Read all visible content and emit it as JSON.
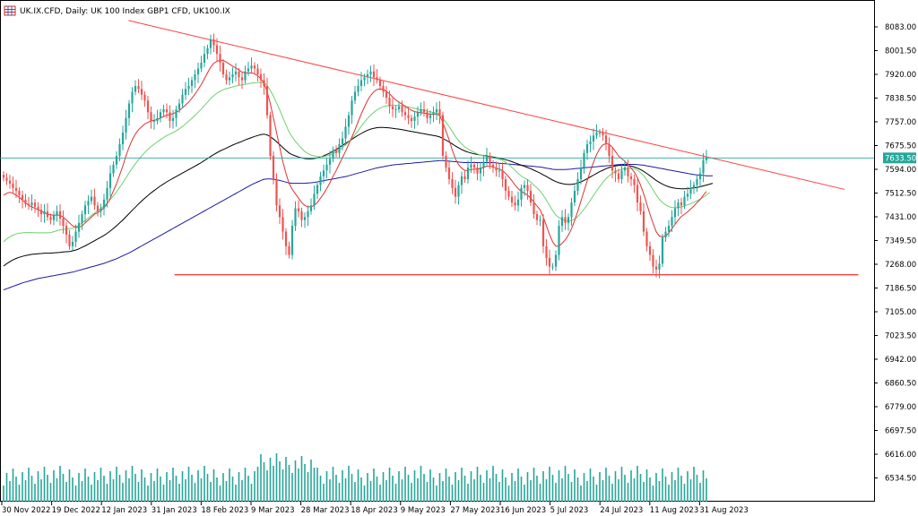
{
  "window": {
    "title": "UK.IX.CFD, Daily:  UK 100 Index GBP1 CFD, UK100.IX",
    "icon": "chart-grid-icon"
  },
  "chart_data": {
    "type": "candlestick",
    "symbol": "UK.IX.CFD",
    "timeframe": "Daily",
    "description": "UK 100 Index GBP1 CFD, UK100.IX",
    "current_price_label": "7633.50",
    "y_ticks": [
      "8083.00",
      "8001.50",
      "7920.00",
      "7838.50",
      "7757.00",
      "7675.50",
      "7594.00",
      "7512.50",
      "7431.00",
      "7349.50",
      "7268.00",
      "7186.50",
      "7105.00",
      "7023.50",
      "6942.00",
      "6860.50",
      "6779.00",
      "6697.50",
      "6616.00",
      "6534.50"
    ],
    "x_ticks": [
      "30 Nov 2022",
      "19 Dec 2022",
      "12 Jan 2023",
      "31 Jan 2023",
      "18 Feb 2023",
      "9 Mar 2023",
      "28 Mar 2023",
      "18 Apr 2023",
      "9 May 2023",
      "27 May 2023",
      "16 Jun 2023",
      "5 Jul 2023",
      "24 Jul 2023",
      "11 Aug 2023",
      "31 Aug 2023"
    ],
    "ylim": [
      6505,
      8105
    ],
    "grid": false,
    "colors": {
      "bull": "#26a69a",
      "bear": "#ef5350",
      "ma_fast": "#e03030",
      "ma_mid": "#6fd06f",
      "ma_slow": "#000000",
      "ma_long": "#1a1aa8",
      "trendline": "#ff4040",
      "support": "#ff4040",
      "price_line": "#26a69a",
      "volume": "#26a69a"
    },
    "closes": [
      7565,
      7555,
      7545,
      7530,
      7520,
      7505,
      7490,
      7475,
      7470,
      7480,
      7465,
      7455,
      7440,
      7450,
      7430,
      7420,
      7435,
      7450,
      7425,
      7400,
      7370,
      7330,
      7345,
      7380,
      7410,
      7440,
      7470,
      7485,
      7500,
      7470,
      7450,
      7460,
      7490,
      7530,
      7580,
      7610,
      7640,
      7680,
      7720,
      7770,
      7820,
      7860,
      7880,
      7870,
      7850,
      7830,
      7790,
      7760,
      7760,
      7770,
      7790,
      7800,
      7790,
      7760,
      7770,
      7800,
      7820,
      7850,
      7870,
      7880,
      7900,
      7920,
      7940,
      7960,
      7990,
      8010,
      8040,
      8020,
      7990,
      7960,
      7920,
      7900,
      7910,
      7920,
      7930,
      7910,
      7900,
      7930,
      7940,
      7950,
      7940,
      7920,
      7900,
      7880,
      7780,
      7640,
      7560,
      7470,
      7430,
      7380,
      7330,
      7300,
      7400,
      7460,
      7450,
      7420,
      7430,
      7450,
      7470,
      7510,
      7540,
      7570,
      7590,
      7610,
      7630,
      7660,
      7650,
      7680,
      7700,
      7740,
      7780,
      7830,
      7860,
      7880,
      7900,
      7910,
      7920,
      7930,
      7910,
      7900,
      7880,
      7860,
      7840,
      7810,
      7800,
      7800,
      7810,
      7790,
      7780,
      7770,
      7760,
      7775,
      7790,
      7800,
      7790,
      7770,
      7780,
      7790,
      7800,
      7780,
      7640,
      7600,
      7560,
      7530,
      7500,
      7540,
      7570,
      7560,
      7600,
      7610,
      7600,
      7580,
      7600,
      7620,
      7640,
      7610,
      7600,
      7590,
      7590,
      7560,
      7520,
      7500,
      7480,
      7470,
      7490,
      7530,
      7540,
      7520,
      7480,
      7440,
      7420,
      7420,
      7330,
      7290,
      7260,
      7260,
      7300,
      7400,
      7430,
      7410,
      7430,
      7480,
      7520,
      7560,
      7600,
      7650,
      7680,
      7690,
      7710,
      7720,
      7720,
      7710,
      7680,
      7640,
      7590,
      7580,
      7560,
      7590,
      7600,
      7570,
      7560,
      7540,
      7480,
      7450,
      7380,
      7330,
      7300,
      7260,
      7250,
      7270,
      7360,
      7380,
      7400,
      7430,
      7460,
      7480,
      7470,
      7500,
      7510,
      7530,
      7540,
      7560,
      7580,
      7625,
      7633
    ],
    "ma_fast": [
      7505,
      7512,
      7515,
      7512,
      7505,
      7498,
      7488,
      7480,
      7470,
      7465,
      7460,
      7455,
      7450,
      7445,
      7440,
      7438,
      7436,
      7437,
      7436,
      7430,
      7420,
      7410,
      7400,
      7395,
      7395,
      7400,
      7410,
      7420,
      7430,
      7440,
      7445,
      7452,
      7462,
      7475,
      7495,
      7520,
      7545,
      7575,
      7605,
      7640,
      7670,
      7695,
      7715,
      7730,
      7740,
      7750,
      7755,
      7760,
      7762,
      7765,
      7770,
      7775,
      7780,
      7782,
      7785,
      7790,
      7795,
      7805,
      7815,
      7825,
      7838,
      7852,
      7868,
      7885,
      7905,
      7925,
      7945,
      7958,
      7965,
      7968,
      7968,
      7962,
      7955,
      7948,
      7942,
      7935,
      7928,
      7925,
      7925,
      7925,
      7922,
      7915,
      7905,
      7890,
      7860,
      7820,
      7770,
      7720,
      7670,
      7620,
      7580,
      7545,
      7525,
      7510,
      7495,
      7480,
      7470,
      7465,
      7465,
      7470,
      7480,
      7495,
      7510,
      7528,
      7548,
      7570,
      7590,
      7612,
      7634,
      7656,
      7680,
      7705,
      7730,
      7758,
      7784,
      7808,
      7830,
      7848,
      7860,
      7868,
      7870,
      7868,
      7862,
      7853,
      7842,
      7832,
      7825,
      7818,
      7810,
      7803,
      7797,
      7792,
      7790,
      7788,
      7787,
      7785,
      7783,
      7783,
      7784,
      7778,
      7755,
      7725,
      7695,
      7660,
      7630,
      7610,
      7598,
      7590,
      7590,
      7593,
      7595,
      7595,
      7597,
      7600,
      7605,
      7605,
      7602,
      7598,
      7595,
      7590,
      7580,
      7568,
      7555,
      7540,
      7528,
      7518,
      7512,
      7505,
      7495,
      7482,
      7468,
      7455,
      7430,
      7400,
      7370,
      7345,
      7330,
      7330,
      7340,
      7352,
      7368,
      7390,
      7418,
      7450,
      7485,
      7520,
      7555,
      7588,
      7618,
      7645,
      7665,
      7678,
      7682,
      7680,
      7670,
      7655,
      7640,
      7630,
      7622,
      7610,
      7598,
      7585,
      7565,
      7540,
      7510,
      7475,
      7440,
      7408,
      7380,
      7365,
      7362,
      7365,
      7375,
      7390,
      7405,
      7420,
      7432,
      7440,
      7448,
      7458,
      7468,
      7480,
      7490,
      7505,
      7518
    ],
    "ma_mid": [
      7345,
      7355,
      7362,
      7368,
      7372,
      7375,
      7376,
      7377,
      7377,
      7377,
      7376,
      7376,
      7376,
      7376,
      7376,
      7377,
      7380,
      7383,
      7386,
      7388,
      7389,
      7390,
      7392,
      7396,
      7402,
      7410,
      7418,
      7427,
      7436,
      7444,
      7452,
      7460,
      7468,
      7478,
      7490,
      7503,
      7517,
      7532,
      7548,
      7565,
      7582,
      7598,
      7613,
      7627,
      7640,
      7652,
      7662,
      7672,
      7680,
      7688,
      7696,
      7703,
      7710,
      7715,
      7720,
      7726,
      7733,
      7741,
      7750,
      7759,
      7769,
      7779,
      7790,
      7801,
      7813,
      7825,
      7837,
      7847,
      7855,
      7862,
      7867,
      7871,
      7874,
      7877,
      7880,
      7882,
      7884,
      7886,
      7888,
      7890,
      7891,
      7892,
      7892,
      7891,
      7882,
      7865,
      7845,
      7822,
      7798,
      7772,
      7747,
      7722,
      7705,
      7690,
      7678,
      7666,
      7655,
      7648,
      7643,
      7640,
      7638,
      7637,
      7638,
      7640,
      7643,
      7648,
      7654,
      7661,
      7669,
      7678,
      7688,
      7700,
      7713,
      7727,
      7742,
      7756,
      7769,
      7780,
      7790,
      7798,
      7804,
      7809,
      7812,
      7813,
      7814,
      7814,
      7814,
      7812,
      7810,
      7808,
      7806,
      7803,
      7801,
      7799,
      7797,
      7794,
      7791,
      7789,
      7787,
      7783,
      7770,
      7755,
      7740,
      7724,
      7707,
      7693,
      7681,
      7671,
      7664,
      7658,
      7652,
      7647,
      7643,
      7640,
      7638,
      7636,
      7634,
      7631,
      7628,
      7624,
      7618,
      7610,
      7601,
      7590,
      7580,
      7571,
      7564,
      7558,
      7550,
      7540,
      7530,
      7520,
      7505,
      7488,
      7470,
      7452,
      7437,
      7428,
      7422,
      7418,
      7416,
      7418,
      7423,
      7432,
      7443,
      7457,
      7472,
      7488,
      7504,
      7520,
      7535,
      7549,
      7562,
      7572,
      7580,
      7587,
      7591,
      7594,
      7597,
      7598,
      7598,
      7596,
      7591,
      7583,
      7572,
      7558,
      7541,
      7523,
      7506,
      7491,
      7480,
      7472,
      7466,
      7463,
      7462,
      7463,
      7465,
      7468,
      7472,
      7476,
      7481,
      7486,
      7492,
      7498,
      7506,
      7515
    ],
    "ma_slow": [
      7262,
      7270,
      7277,
      7283,
      7288,
      7292,
      7295,
      7298,
      7300,
      7302,
      7303,
      7304,
      7305,
      7306,
      7306,
      7306,
      7307,
      7308,
      7309,
      7310,
      7311,
      7312,
      7314,
      7317,
      7321,
      7326,
      7331,
      7337,
      7343,
      7349,
      7355,
      7361,
      7367,
      7374,
      7382,
      7391,
      7400,
      7410,
      7420,
      7431,
      7442,
      7453,
      7464,
      7475,
      7485,
      7495,
      7504,
      7513,
      7521,
      7529,
      7537,
      7544,
      7551,
      7557,
      7563,
      7569,
      7575,
      7581,
      7587,
      7593,
      7599,
      7605,
      7611,
      7617,
      7624,
      7631,
      7638,
      7645,
      7651,
      7657,
      7662,
      7667,
      7672,
      7677,
      7682,
      7686,
      7690,
      7695,
      7699,
      7703,
      7707,
      7710,
      7713,
      7715,
      7712,
      7706,
      7698,
      7689,
      7679,
      7669,
      7659,
      7650,
      7644,
      7640,
      7636,
      7633,
      7631,
      7630,
      7630,
      7631,
      7633,
      7636,
      7640,
      7645,
      7650,
      7656,
      7662,
      7669,
      7676,
      7683,
      7690,
      7697,
      7704,
      7711,
      7717,
      7723,
      7728,
      7732,
      7735,
      7737,
      7738,
      7738,
      7737,
      7736,
      7735,
      7733,
      7732,
      7730,
      7728,
      7726,
      7724,
      7722,
      7720,
      7718,
      7716,
      7714,
      7712,
      7710,
      7708,
      7705,
      7700,
      7694,
      7688,
      7681,
      7674,
      7668,
      7662,
      7657,
      7653,
      7650,
      7647,
      7645,
      7643,
      7641,
      7640,
      7638,
      7636,
      7634,
      7632,
      7630,
      7627,
      7624,
      7620,
      7616,
      7612,
      7608,
      7604,
      7600,
      7596,
      7591,
      7586,
      7581,
      7575,
      7569,
      7563,
      7557,
      7552,
      7548,
      7545,
      7543,
      7542,
      7542,
      7544,
      7547,
      7551,
      7556,
      7562,
      7568,
      7574,
      7580,
      7586,
      7591,
      7596,
      7600,
      7603,
      7606,
      7607,
      7608,
      7608,
      7607,
      7605,
      7602,
      7598,
      7593,
      7587,
      7580,
      7572,
      7564,
      7556,
      7549,
      7543,
      7538,
      7534,
      7531,
      7529,
      7528,
      7527,
      7527,
      7528,
      7529,
      7530,
      7532,
      7534,
      7537,
      7540,
      7543,
      7546
    ],
    "ma_long": [
      7180,
      7184,
      7188,
      7192,
      7196,
      7200,
      7204,
      7207,
      7210,
      7213,
      7216,
      7219,
      7221,
      7223,
      7225,
      7227,
      7229,
      7231,
      7233,
      7235,
      7237,
      7239,
      7241,
      7244,
      7247,
      7250,
      7253,
      7256,
      7259,
      7262,
      7265,
      7268,
      7271,
      7275,
      7279,
      7283,
      7287,
      7292,
      7297,
      7302,
      7307,
      7313,
      7319,
      7325,
      7331,
      7337,
      7343,
      7349,
      7355,
      7361,
      7367,
      7373,
      7379,
      7385,
      7391,
      7397,
      7403,
      7409,
      7415,
      7421,
      7427,
      7433,
      7439,
      7445,
      7451,
      7457,
      7463,
      7469,
      7475,
      7481,
      7487,
      7493,
      7499,
      7505,
      7511,
      7517,
      7523,
      7529,
      7535,
      7541,
      7546,
      7551,
      7556,
      7560,
      7561,
      7561,
      7560,
      7558,
      7556,
      7553,
      7550,
      7547,
      7546,
      7546,
      7546,
      7546,
      7546,
      7547,
      7548,
      7549,
      7551,
      7553,
      7555,
      7557,
      7559,
      7561,
      7563,
      7565,
      7567,
      7569,
      7572,
      7575,
      7578,
      7581,
      7584,
      7587,
      7590,
      7593,
      7596,
      7599,
      7601,
      7603,
      7605,
      7607,
      7609,
      7610,
      7611,
      7612,
      7613,
      7614,
      7615,
      7616,
      7617,
      7618,
      7619,
      7620,
      7621,
      7622,
      7623,
      7624,
      7624,
      7623,
      7622,
      7621,
      7620,
      7619,
      7618,
      7617,
      7617,
      7617,
      7617,
      7617,
      7617,
      7617,
      7617,
      7617,
      7617,
      7616,
      7615,
      7614,
      7613,
      7612,
      7611,
      7610,
      7609,
      7608,
      7607,
      7606,
      7605,
      7604,
      7603,
      7602,
      7600,
      7598,
      7596,
      7594,
      7593,
      7593,
      7593,
      7593,
      7594,
      7595,
      7596,
      7597,
      7598,
      7599,
      7600,
      7601,
      7602,
      7603,
      7604,
      7605,
      7606,
      7607,
      7608,
      7609,
      7610,
      7611,
      7611,
      7611,
      7611,
      7611,
      7610,
      7609,
      7608,
      7606,
      7604,
      7602,
      7600,
      7598,
      7596,
      7594,
      7592,
      7590,
      7588,
      7586,
      7584,
      7582,
      7580,
      7578,
      7576,
      7575,
      7574,
      7573,
      7572,
      7572,
      7572
    ],
    "trendline": {
      "from": [
        0.14,
        8105
      ],
      "to": [
        0.92,
        7525
      ]
    },
    "support_line": {
      "from": [
        0.19,
        7232
      ],
      "to": [
        0.935,
        7232
      ]
    }
  }
}
